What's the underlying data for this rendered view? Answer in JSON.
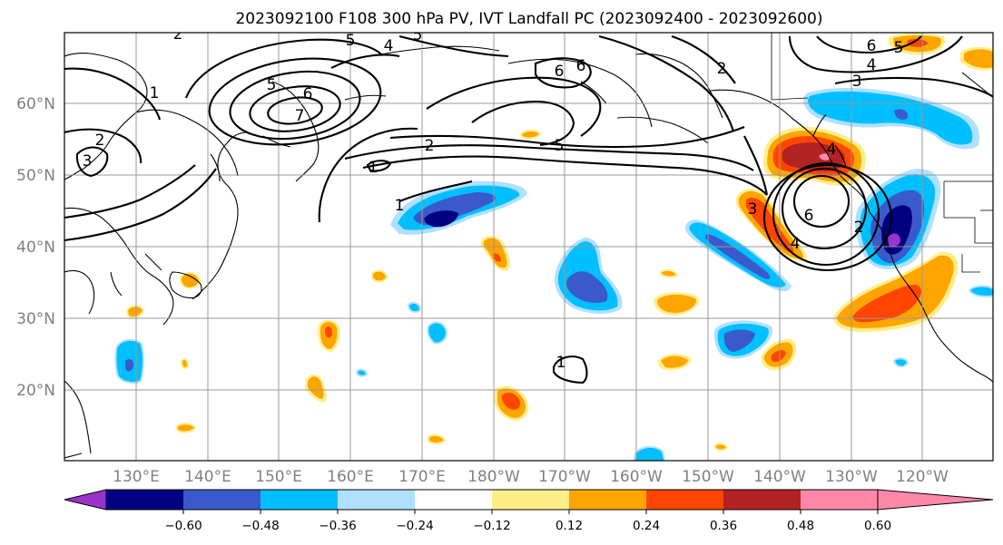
{
  "title": "2023092100 F108 300 hPa PV, IVT Landfall PC (2023092400 - 2023092600)",
  "lat_labels": [
    "60°N",
    "50°N",
    "40°N",
    "30°N",
    "20°N"
  ],
  "lon_labels": [
    "130°E",
    "140°E",
    "150°E",
    "160°E",
    "170°E",
    "180°W",
    "170°W",
    "160°W",
    "150°W",
    "140°W",
    "130°W",
    "120°W"
  ],
  "contour_labels": [
    "2",
    "5",
    "4",
    "5",
    "6",
    "6",
    "6",
    "2",
    "5",
    "6",
    "7",
    "1",
    "2",
    "3",
    "2",
    "1",
    "5",
    "1",
    "3",
    "4",
    "5",
    "6",
    "3",
    "4",
    "1",
    "2",
    "4"
  ],
  "colorbar": {
    "colors": [
      "#9933cc",
      "#000080",
      "#3a5acc",
      "#00bfff",
      "#b0e0ff",
      "#ffffff",
      "#ffee88",
      "#ffa500",
      "#ff4500",
      "#b22222",
      "#ff88aa"
    ],
    "tick_labels": [
      "−0.60",
      "−0.48",
      "−0.36",
      "−0.24",
      "−0.12",
      "0.12",
      "0.24",
      "0.36",
      "0.48",
      "0.60"
    ]
  }
}
